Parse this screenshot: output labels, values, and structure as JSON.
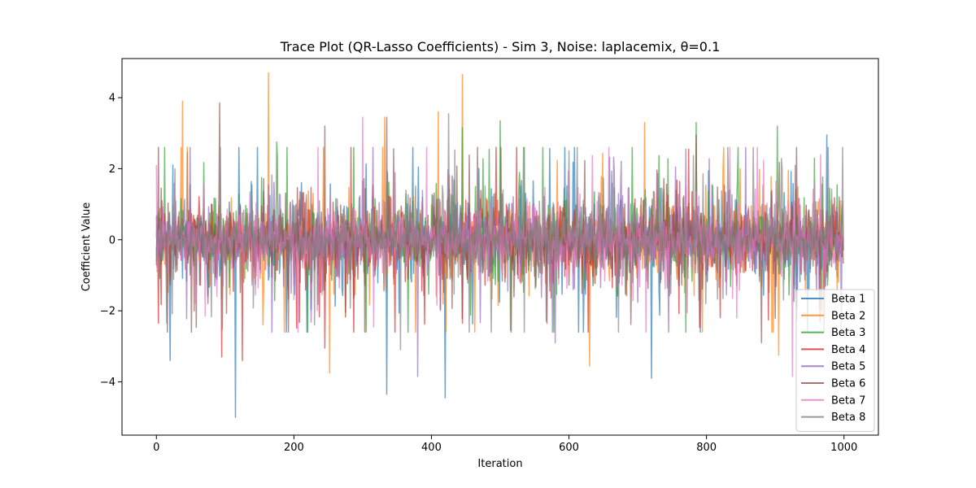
{
  "chart_data": {
    "type": "line",
    "title": "Trace Plot (QR-Lasso Coefficients) - Sim 3, Noise: laplacemix, θ=0.1",
    "xlabel": "Iteration",
    "ylabel": "Coefficient Value",
    "xlim": [
      -50,
      1050
    ],
    "ylim": [
      -5.5,
      5.1
    ],
    "x_ticks": [
      0,
      200,
      400,
      600,
      800,
      1000
    ],
    "y_ticks": [
      -4,
      -2,
      0,
      2,
      4
    ],
    "x_tick_labels": [
      "0",
      "200",
      "400",
      "600",
      "800",
      "1000"
    ],
    "y_tick_labels": [
      "−4",
      "−2",
      "0",
      "2",
      "4"
    ],
    "n_iterations": 1000,
    "grid": false,
    "legend_position": "lower-right",
    "series": [
      {
        "name": "Beta 1",
        "color": "#1f77b4",
        "scale": 0.95,
        "peaks": [
          [
            115,
            -5.0
          ],
          [
            420,
            -4.45
          ],
          [
            335,
            -4.35
          ],
          [
            720,
            -3.9
          ],
          [
            20,
            -3.4
          ],
          [
            975,
            2.95
          ],
          [
            45,
            2.45
          ]
        ]
      },
      {
        "name": "Beta 2",
        "color": "#ff7f0e",
        "scale": 0.9,
        "peaks": [
          [
            163,
            4.7
          ],
          [
            445,
            4.65
          ],
          [
            38,
            3.9
          ],
          [
            332,
            3.45
          ],
          [
            410,
            3.6
          ],
          [
            710,
            3.3
          ],
          [
            252,
            -3.75
          ],
          [
            630,
            -3.55
          ],
          [
            905,
            -3.25
          ]
        ]
      },
      {
        "name": "Beta 3",
        "color": "#2ca02c",
        "scale": 0.9,
        "peaks": [
          [
            500,
            3.35
          ],
          [
            785,
            3.3
          ],
          [
            903,
            3.2
          ],
          [
            445,
            3.15
          ],
          [
            175,
            2.75
          ],
          [
            12,
            2.6
          ]
        ]
      },
      {
        "name": "Beta 4",
        "color": "#d62728",
        "scale": 0.85,
        "peaks": [
          [
            125,
            2.1
          ],
          [
            95,
            -3.3
          ],
          [
            125,
            -3.4
          ],
          [
            245,
            -3.05
          ],
          [
            3,
            -2.35
          ]
        ]
      },
      {
        "name": "Beta 5",
        "color": "#9467bd",
        "scale": 0.8,
        "peaks": [
          [
            380,
            -3.85
          ],
          [
            580,
            -2.9
          ],
          [
            770,
            2.55
          ]
        ]
      },
      {
        "name": "Beta 6",
        "color": "#8c564b",
        "scale": 0.9,
        "peaks": [
          [
            92,
            3.85
          ],
          [
            245,
            3.2
          ],
          [
            335,
            3.45
          ],
          [
            785,
            2.95
          ],
          [
            3,
            2.6
          ],
          [
            880,
            -2.9
          ]
        ]
      },
      {
        "name": "Beta 7",
        "color": "#e377c2",
        "scale": 0.85,
        "peaks": [
          [
            300,
            3.45
          ],
          [
            925,
            -3.85
          ],
          [
            0,
            2.1
          ],
          [
            712,
            -2.6
          ]
        ]
      },
      {
        "name": "Beta 8",
        "color": "#7f7f7f",
        "scale": 0.85,
        "peaks": [
          [
            425,
            3.55
          ],
          [
            355,
            -3.1
          ],
          [
            600,
            2.5
          ],
          [
            230,
            -2.4
          ]
        ]
      }
    ]
  }
}
